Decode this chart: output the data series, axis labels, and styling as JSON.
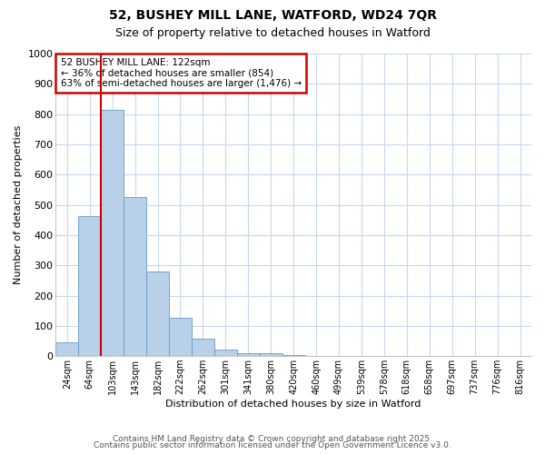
{
  "title": "52, BUSHEY MILL LANE, WATFORD, WD24 7QR",
  "subtitle": "Size of property relative to detached houses in Watford",
  "xlabel": "Distribution of detached houses by size in Watford",
  "ylabel": "Number of detached properties",
  "categories": [
    "24sqm",
    "64sqm",
    "103sqm",
    "143sqm",
    "182sqm",
    "222sqm",
    "262sqm",
    "301sqm",
    "341sqm",
    "380sqm",
    "420sqm",
    "460sqm",
    "499sqm",
    "539sqm",
    "578sqm",
    "618sqm",
    "658sqm",
    "697sqm",
    "737sqm",
    "776sqm",
    "816sqm"
  ],
  "values": [
    46,
    462,
    815,
    525,
    280,
    128,
    57,
    22,
    10,
    10,
    5,
    0,
    0,
    0,
    0,
    0,
    0,
    0,
    0,
    0,
    0
  ],
  "bar_color": "#b8d0e8",
  "bar_edge_color": "#6699cc",
  "red_line_index": 2,
  "annotation_title": "52 BUSHEY MILL LANE: 122sqm",
  "annotation_line2": "← 36% of detached houses are smaller (854)",
  "annotation_line3": "63% of semi-detached houses are larger (1,476) →",
  "annotation_box_facecolor": "#ffffff",
  "annotation_box_edgecolor": "#cc0000",
  "red_line_color": "#cc0000",
  "ylim": [
    0,
    1000
  ],
  "background_color": "#ffffff",
  "plot_bg_color": "#ffffff",
  "grid_color": "#c8d8f0",
  "footer_line1": "Contains HM Land Registry data © Crown copyright and database right 2025.",
  "footer_line2": "Contains public sector information licensed under the Open Government Licence v3.0."
}
